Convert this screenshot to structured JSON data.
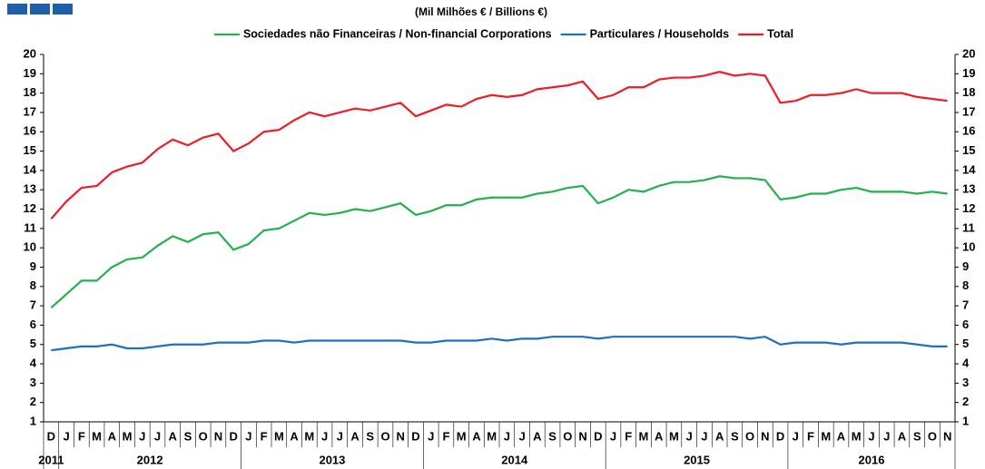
{
  "chart_data": {
    "type": "line",
    "title": "(Mil Milhões € / Billions €)",
    "categories": [
      "D",
      "J",
      "F",
      "M",
      "A",
      "M",
      "J",
      "J",
      "A",
      "S",
      "O",
      "N",
      "D",
      "J",
      "F",
      "M",
      "A",
      "M",
      "J",
      "J",
      "A",
      "S",
      "O",
      "N",
      "D",
      "J",
      "F",
      "M",
      "A",
      "M",
      "J",
      "J",
      "A",
      "S",
      "O",
      "N",
      "D",
      "J",
      "F",
      "M",
      "A",
      "M",
      "J",
      "J",
      "A",
      "S",
      "O",
      "N",
      "D",
      "J",
      "F",
      "M",
      "A",
      "M",
      "J",
      "J",
      "A",
      "S",
      "O",
      "N"
    ],
    "years": [
      "2011",
      "2012",
      "2013",
      "2014",
      "2015",
      "2016"
    ],
    "series": [
      {
        "name": "Sociedades não Financeiras / Non-financial Corporations",
        "color": "#22b14c",
        "values": [
          6.9,
          7.6,
          8.3,
          8.3,
          9.0,
          9.4,
          9.5,
          10.1,
          10.6,
          10.3,
          10.7,
          10.8,
          9.9,
          10.2,
          10.9,
          11.0,
          11.4,
          11.8,
          11.7,
          11.8,
          12.0,
          11.9,
          12.1,
          12.3,
          11.7,
          11.9,
          12.2,
          12.2,
          12.5,
          12.6,
          12.6,
          12.6,
          12.8,
          12.9,
          13.1,
          13.2,
          12.3,
          12.6,
          13.0,
          12.9,
          13.2,
          13.4,
          13.4,
          13.5,
          13.7,
          13.6,
          13.6,
          13.5,
          12.5,
          12.6,
          12.8,
          12.8,
          13.0,
          13.1,
          12.9,
          12.9,
          12.9,
          12.8,
          12.9,
          12.8
        ]
      },
      {
        "name": "Particulares / Households",
        "color": "#1f6fc0",
        "values": [
          4.7,
          4.8,
          4.9,
          4.9,
          5.0,
          4.8,
          4.8,
          4.9,
          5.0,
          5.0,
          5.0,
          5.1,
          5.1,
          5.1,
          5.2,
          5.2,
          5.1,
          5.2,
          5.2,
          5.2,
          5.2,
          5.2,
          5.2,
          5.2,
          5.1,
          5.1,
          5.2,
          5.2,
          5.2,
          5.3,
          5.2,
          5.3,
          5.3,
          5.4,
          5.4,
          5.4,
          5.3,
          5.4,
          5.4,
          5.4,
          5.4,
          5.4,
          5.4,
          5.4,
          5.4,
          5.4,
          5.3,
          5.4,
          5.0,
          5.1,
          5.1,
          5.1,
          5.0,
          5.1,
          5.1,
          5.1,
          5.1,
          5.0,
          4.9,
          4.9
        ]
      },
      {
        "name": "Total",
        "color": "#ee1c24",
        "values": [
          11.5,
          12.4,
          13.1,
          13.2,
          13.9,
          14.2,
          14.4,
          15.1,
          15.6,
          15.3,
          15.7,
          15.9,
          15.0,
          15.4,
          16.0,
          16.1,
          16.6,
          17.0,
          16.8,
          17.0,
          17.2,
          17.1,
          17.3,
          17.5,
          16.8,
          17.1,
          17.4,
          17.3,
          17.7,
          17.9,
          17.8,
          17.9,
          18.2,
          18.3,
          18.4,
          18.6,
          17.7,
          17.9,
          18.3,
          18.3,
          18.7,
          18.8,
          18.8,
          18.9,
          19.1,
          18.9,
          19.0,
          18.9,
          17.5,
          17.6,
          17.9,
          17.9,
          18.0,
          18.2,
          18.0,
          18.0,
          18.0,
          17.8,
          17.7,
          17.6
        ]
      }
    ],
    "ylim": [
      1,
      20
    ],
    "yticks": [
      1,
      2,
      3,
      4,
      5,
      6,
      7,
      8,
      9,
      10,
      11,
      12,
      13,
      14,
      15,
      16,
      17,
      18,
      19,
      20
    ]
  }
}
